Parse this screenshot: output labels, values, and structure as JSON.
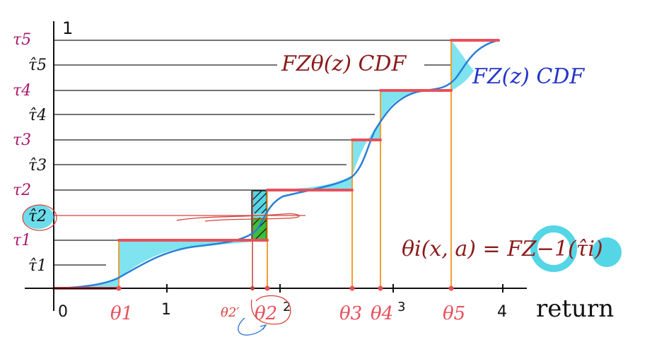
{
  "colors": {
    "staircase": "#e8505b",
    "cdf_curve": "#2a7fd6",
    "fill": "#7fe3f0",
    "highlight": "#54d6e6",
    "vline": "#f0a030",
    "label_red": "#e8505b",
    "label_tau": "#a8186a",
    "formula": "#8b1a1a",
    "blue_text": "#2435c8",
    "green": "#3bbf3b",
    "gridline": "#222222"
  },
  "y_top_label": "1",
  "tau_labels": [
    {
      "id": "tau5",
      "text": "τ5"
    },
    {
      "id": "tauhat5",
      "text": "τ̂5"
    },
    {
      "id": "tau4",
      "text": "τ4"
    },
    {
      "id": "tauhat4",
      "text": "τ̂4"
    },
    {
      "id": "tau3",
      "text": "τ3"
    },
    {
      "id": "tauhat3",
      "text": "τ̂3"
    },
    {
      "id": "tau2",
      "text": "τ2"
    },
    {
      "id": "tauhat2",
      "text": "τ̂2"
    },
    {
      "id": "tau1",
      "text": "τ1"
    },
    {
      "id": "tauhat1",
      "text": "τ̂1"
    }
  ],
  "x_ticks": [
    "0",
    "1",
    "2",
    "3",
    "4"
  ],
  "x_axis_label": "return",
  "theta_labels": [
    "θ1",
    "θ2",
    "θ3",
    "θ4",
    "θ5"
  ],
  "theta2_prime_label": "θ2′",
  "legend_model": "FZθ(z)  CDF",
  "legend_true": "FZ(z)  CDF",
  "formula": "θi(x, a) = FZ−1(τ̂i)",
  "chart_data": {
    "type": "line",
    "xlabel": "return",
    "xlim": [
      0,
      4
    ],
    "ylim": [
      0,
      1
    ],
    "x_ticks": [
      0,
      1,
      2,
      3,
      4
    ],
    "quantile_levels": [
      "τ1",
      "τ2",
      "τ3",
      "τ4",
      "τ5"
    ],
    "midpoint_levels": [
      "τ̂1",
      "τ̂2",
      "τ̂3",
      "τ̂4",
      "τ̂5"
    ],
    "quantile_locations": [
      "θ1",
      "θ2",
      "θ3",
      "θ4",
      "θ5"
    ]
  }
}
